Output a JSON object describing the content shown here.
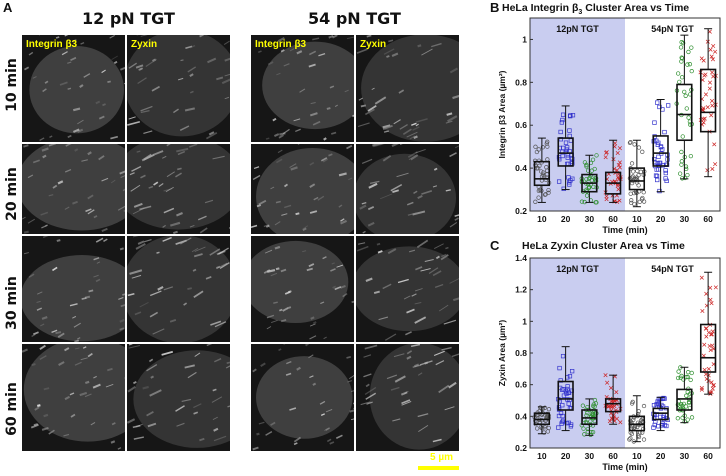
{
  "figure": {
    "panel_a": {
      "letter": "A",
      "conditions": [
        "12 pN TGT",
        "54 pN TGT"
      ],
      "channels": [
        "Integrin β3",
        "Zyxin"
      ],
      "time_rows": [
        "10 min",
        "20 min",
        "30 min",
        "60 min"
      ],
      "scale_bar": "5 µm",
      "scale_bar_color": "#ffff00"
    }
  },
  "chart_data": [
    {
      "panel": "B",
      "type": "box",
      "title": "HeLa Integrin β3 Cluster Area vs Time",
      "xlabel": "Time (min)",
      "ylabel": "Integrin β3 Area (µm²)",
      "ylim": [
        0.2,
        1.1
      ],
      "yticks": [
        0.2,
        0.4,
        0.6,
        0.8,
        1.0
      ],
      "regions": [
        {
          "label": "12pN TGT",
          "shaded": true,
          "color": "#c9cdf0"
        },
        {
          "label": "54pN TGT",
          "shaded": false,
          "color": "#ffffff"
        }
      ],
      "categories": [
        "10",
        "20",
        "30",
        "60",
        "10",
        "20",
        "30",
        "60"
      ],
      "boxes": [
        {
          "group": "12pN TGT",
          "time": "10",
          "min": 0.24,
          "q1": 0.32,
          "median": 0.35,
          "q3": 0.43,
          "max": 0.54,
          "marker": "circle",
          "color": "#555555"
        },
        {
          "group": "12pN TGT",
          "time": "20",
          "min": 0.3,
          "q1": 0.41,
          "median": 0.47,
          "q3": 0.54,
          "max": 0.69,
          "marker": "square",
          "color": "#3333cc"
        },
        {
          "group": "12pN TGT",
          "time": "30",
          "min": 0.24,
          "q1": 0.29,
          "median": 0.33,
          "q3": 0.37,
          "max": 0.46,
          "marker": "circle",
          "color": "#2f8f2f"
        },
        {
          "group": "12pN TGT",
          "time": "60",
          "min": 0.24,
          "q1": 0.28,
          "median": 0.33,
          "q3": 0.38,
          "max": 0.53,
          "marker": "cross",
          "color": "#cc2222"
        },
        {
          "group": "54pN TGT",
          "time": "10",
          "min": 0.22,
          "q1": 0.3,
          "median": 0.34,
          "q3": 0.4,
          "max": 0.53,
          "marker": "circle",
          "color": "#555555"
        },
        {
          "group": "54pN TGT",
          "time": "20",
          "min": 0.29,
          "q1": 0.41,
          "median": 0.47,
          "q3": 0.55,
          "max": 0.72,
          "marker": "square",
          "color": "#3333cc"
        },
        {
          "group": "54pN TGT",
          "time": "30",
          "min": 0.35,
          "q1": 0.53,
          "median": 0.65,
          "q3": 0.79,
          "max": 1.02,
          "marker": "circle",
          "color": "#2f8f2f"
        },
        {
          "group": "54pN TGT",
          "time": "60",
          "min": 0.36,
          "q1": 0.57,
          "median": 0.66,
          "q3": 0.86,
          "max": 1.05,
          "marker": "cross",
          "color": "#cc2222"
        }
      ],
      "grid": false
    },
    {
      "panel": "C",
      "type": "box",
      "title": "HeLa Zyxin Cluster Area vs Time",
      "xlabel": "Time (min)",
      "ylabel": "Zyxin Area (µm²)",
      "ylim": [
        0.2,
        1.4
      ],
      "yticks": [
        0.2,
        0.4,
        0.6,
        0.8,
        1.0,
        1.2,
        1.4
      ],
      "regions": [
        {
          "label": "12pN TGT",
          "shaded": true,
          "color": "#c9cdf0"
        },
        {
          "label": "54pN TGT",
          "shaded": false,
          "color": "#ffffff"
        }
      ],
      "categories": [
        "10",
        "20",
        "30",
        "60",
        "10",
        "20",
        "30",
        "60"
      ],
      "boxes": [
        {
          "group": "12pN TGT",
          "time": "10",
          "min": 0.29,
          "q1": 0.35,
          "median": 0.38,
          "q3": 0.42,
          "max": 0.46,
          "marker": "circle",
          "color": "#555555"
        },
        {
          "group": "12pN TGT",
          "time": "20",
          "min": 0.31,
          "q1": 0.44,
          "median": 0.51,
          "q3": 0.62,
          "max": 0.84,
          "marker": "square",
          "color": "#3333cc"
        },
        {
          "group": "12pN TGT",
          "time": "30",
          "min": 0.28,
          "q1": 0.35,
          "median": 0.39,
          "q3": 0.44,
          "max": 0.51,
          "marker": "circle",
          "color": "#2f8f2f"
        },
        {
          "group": "12pN TGT",
          "time": "60",
          "min": 0.35,
          "q1": 0.43,
          "median": 0.48,
          "q3": 0.51,
          "max": 0.66,
          "marker": "cross",
          "color": "#cc2222"
        },
        {
          "group": "54pN TGT",
          "time": "10",
          "min": 0.24,
          "q1": 0.31,
          "median": 0.35,
          "q3": 0.4,
          "max": 0.53,
          "marker": "circle",
          "color": "#555555"
        },
        {
          "group": "54pN TGT",
          "time": "20",
          "min": 0.31,
          "q1": 0.38,
          "median": 0.42,
          "q3": 0.45,
          "max": 0.52,
          "marker": "square",
          "color": "#3333cc"
        },
        {
          "group": "54pN TGT",
          "time": "30",
          "min": 0.36,
          "q1": 0.44,
          "median": 0.51,
          "q3": 0.57,
          "max": 0.71,
          "marker": "circle",
          "color": "#2f8f2f"
        },
        {
          "group": "54pN TGT",
          "time": "60",
          "min": 0.54,
          "q1": 0.68,
          "median": 0.77,
          "q3": 0.98,
          "max": 1.31,
          "marker": "cross",
          "color": "#cc2222"
        }
      ],
      "grid": false
    }
  ]
}
